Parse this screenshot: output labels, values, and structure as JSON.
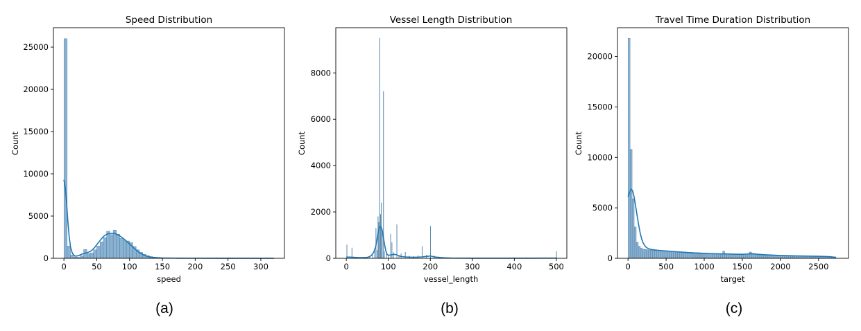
{
  "style": {
    "bar_fill": "#6f9fc7",
    "bar_stroke": "#3b6f96",
    "kde_color": "#1f77b4",
    "axis_color": "#000000"
  },
  "chart_data": [
    {
      "type": "bar",
      "title": "Speed Distribution",
      "xlabel": "speed",
      "ylabel": "Count",
      "panel_label": "(a)",
      "xlim": [
        -16,
        336
      ],
      "ylim": [
        0,
        27300
      ],
      "xticks": [
        0,
        50,
        100,
        150,
        200,
        250,
        300
      ],
      "yticks": [
        0,
        5000,
        10000,
        15000,
        20000,
        25000
      ],
      "bin_width": 5,
      "bins": [
        [
          0,
          26000
        ],
        [
          5,
          1450
        ],
        [
          10,
          400
        ],
        [
          15,
          150
        ],
        [
          20,
          120
        ],
        [
          25,
          300
        ],
        [
          30,
          1050
        ],
        [
          35,
          550
        ],
        [
          40,
          650
        ],
        [
          45,
          1000
        ],
        [
          50,
          1450
        ],
        [
          55,
          1950
        ],
        [
          60,
          2450
        ],
        [
          65,
          3200
        ],
        [
          70,
          2800
        ],
        [
          75,
          3350
        ],
        [
          80,
          2850
        ],
        [
          85,
          2350
        ],
        [
          90,
          2150
        ],
        [
          95,
          2050
        ],
        [
          100,
          1850
        ],
        [
          105,
          1400
        ],
        [
          110,
          1000
        ],
        [
          115,
          700
        ],
        [
          120,
          480
        ],
        [
          125,
          320
        ],
        [
          130,
          200
        ],
        [
          135,
          130
        ],
        [
          140,
          80
        ],
        [
          145,
          50
        ],
        [
          150,
          30
        ],
        [
          155,
          20
        ],
        [
          160,
          15
        ],
        [
          165,
          10
        ],
        [
          170,
          8
        ],
        [
          175,
          5
        ],
        [
          180,
          5
        ],
        [
          190,
          4
        ],
        [
          200,
          3
        ],
        [
          220,
          2
        ],
        [
          250,
          2
        ],
        [
          280,
          1
        ],
        [
          300,
          1
        ],
        [
          315,
          1
        ]
      ],
      "kde": [
        [
          0,
          9300
        ],
        [
          2,
          8400
        ],
        [
          4,
          6600
        ],
        [
          6,
          4400
        ],
        [
          8,
          2600
        ],
        [
          10,
          1350
        ],
        [
          13,
          550
        ],
        [
          17,
          250
        ],
        [
          22,
          300
        ],
        [
          27,
          480
        ],
        [
          32,
          600
        ],
        [
          37,
          700
        ],
        [
          42,
          900
        ],
        [
          47,
          1300
        ],
        [
          52,
          1800
        ],
        [
          57,
          2300
        ],
        [
          62,
          2700
        ],
        [
          67,
          2900
        ],
        [
          72,
          2950
        ],
        [
          77,
          2950
        ],
        [
          82,
          2800
        ],
        [
          87,
          2550
        ],
        [
          92,
          2250
        ],
        [
          97,
          1900
        ],
        [
          102,
          1550
        ],
        [
          107,
          1180
        ],
        [
          112,
          850
        ],
        [
          117,
          580
        ],
        [
          122,
          380
        ],
        [
          127,
          240
        ],
        [
          132,
          150
        ],
        [
          140,
          80
        ],
        [
          150,
          40
        ],
        [
          170,
          20
        ],
        [
          200,
          10
        ],
        [
          250,
          5
        ],
        [
          320,
          0
        ]
      ]
    },
    {
      "type": "bar",
      "title": "Vessel Length Distribution",
      "xlabel": "vessel_length",
      "ylabel": "Count",
      "panel_label": "(b)",
      "xlim": [
        -25,
        525
      ],
      "ylim": [
        0,
        9950
      ],
      "xticks": [
        0,
        100,
        200,
        300,
        400,
        500
      ],
      "yticks": [
        0,
        2000,
        4000,
        6000,
        8000
      ],
      "bin_width": 1,
      "bins": [
        [
          1,
          580
        ],
        [
          13,
          450
        ],
        [
          20,
          50
        ],
        [
          40,
          30
        ],
        [
          55,
          60
        ],
        [
          62,
          150
        ],
        [
          67,
          420
        ],
        [
          70,
          1300
        ],
        [
          73,
          350
        ],
        [
          75,
          1800
        ],
        [
          77,
          1550
        ],
        [
          79,
          9500
        ],
        [
          81,
          1900
        ],
        [
          83,
          2400
        ],
        [
          85,
          1100
        ],
        [
          88,
          7200
        ],
        [
          90,
          300
        ],
        [
          95,
          200
        ],
        [
          100,
          150
        ],
        [
          105,
          1050
        ],
        [
          108,
          680
        ],
        [
          112,
          250
        ],
        [
          120,
          1450
        ],
        [
          125,
          120
        ],
        [
          130,
          200
        ],
        [
          140,
          260
        ],
        [
          150,
          100
        ],
        [
          160,
          80
        ],
        [
          170,
          120
        ],
        [
          180,
          520
        ],
        [
          190,
          140
        ],
        [
          200,
          1380
        ],
        [
          210,
          100
        ],
        [
          220,
          60
        ],
        [
          230,
          50
        ],
        [
          250,
          20
        ],
        [
          300,
          10
        ],
        [
          350,
          5
        ],
        [
          400,
          5
        ],
        [
          450,
          5
        ],
        [
          500,
          290
        ]
      ],
      "kde": [
        [
          0,
          60
        ],
        [
          5,
          50
        ],
        [
          10,
          50
        ],
        [
          20,
          40
        ],
        [
          30,
          30
        ],
        [
          40,
          30
        ],
        [
          50,
          40
        ],
        [
          55,
          70
        ],
        [
          60,
          130
        ],
        [
          65,
          250
        ],
        [
          70,
          500
        ],
        [
          73,
          800
        ],
        [
          76,
          1150
        ],
        [
          79,
          1350
        ],
        [
          82,
          1380
        ],
        [
          85,
          1250
        ],
        [
          88,
          950
        ],
        [
          91,
          600
        ],
        [
          94,
          330
        ],
        [
          97,
          170
        ],
        [
          100,
          130
        ],
        [
          105,
          140
        ],
        [
          110,
          160
        ],
        [
          115,
          170
        ],
        [
          120,
          150
        ],
        [
          125,
          110
        ],
        [
          130,
          80
        ],
        [
          140,
          60
        ],
        [
          150,
          50
        ],
        [
          160,
          45
        ],
        [
          170,
          50
        ],
        [
          180,
          60
        ],
        [
          190,
          80
        ],
        [
          200,
          100
        ],
        [
          205,
          80
        ],
        [
          210,
          60
        ],
        [
          220,
          40
        ],
        [
          230,
          20
        ],
        [
          250,
          10
        ],
        [
          300,
          5
        ],
        [
          400,
          5
        ],
        [
          500,
          10
        ]
      ]
    },
    {
      "type": "bar",
      "title": "Travel Time Duration Distribution",
      "xlabel": "target",
      "ylabel": "Count",
      "panel_label": "(c)",
      "xlim": [
        -138,
        2893
      ],
      "ylim": [
        0,
        22850
      ],
      "xticks": [
        0,
        500,
        1000,
        1500,
        2000,
        2500
      ],
      "yticks": [
        0,
        5000,
        10000,
        15000,
        20000
      ],
      "bin_width": 27,
      "bins": [
        [
          0,
          21800
        ],
        [
          27,
          10800
        ],
        [
          54,
          5900
        ],
        [
          81,
          3100
        ],
        [
          108,
          1600
        ],
        [
          135,
          1200
        ],
        [
          162,
          1000
        ],
        [
          189,
          900
        ],
        [
          216,
          880
        ],
        [
          243,
          850
        ],
        [
          270,
          820
        ],
        [
          297,
          800
        ],
        [
          324,
          790
        ],
        [
          351,
          780
        ],
        [
          378,
          770
        ],
        [
          405,
          760
        ],
        [
          432,
          750
        ],
        [
          459,
          740
        ],
        [
          486,
          730
        ],
        [
          513,
          720
        ],
        [
          540,
          700
        ],
        [
          567,
          690
        ],
        [
          594,
          670
        ],
        [
          621,
          660
        ],
        [
          648,
          650
        ],
        [
          675,
          640
        ],
        [
          702,
          630
        ],
        [
          729,
          620
        ],
        [
          756,
          610
        ],
        [
          783,
          600
        ],
        [
          810,
          590
        ],
        [
          837,
          580
        ],
        [
          864,
          570
        ],
        [
          891,
          560
        ],
        [
          918,
          550
        ],
        [
          945,
          540
        ],
        [
          972,
          530
        ],
        [
          999,
          520
        ],
        [
          1026,
          510
        ],
        [
          1053,
          500
        ],
        [
          1080,
          490
        ],
        [
          1107,
          480
        ],
        [
          1134,
          470
        ],
        [
          1161,
          465
        ],
        [
          1188,
          460
        ],
        [
          1215,
          455
        ],
        [
          1242,
          700
        ],
        [
          1269,
          450
        ],
        [
          1296,
          440
        ],
        [
          1323,
          430
        ],
        [
          1350,
          420
        ],
        [
          1377,
          415
        ],
        [
          1404,
          410
        ],
        [
          1431,
          405
        ],
        [
          1458,
          400
        ],
        [
          1485,
          400
        ],
        [
          1512,
          400
        ],
        [
          1539,
          420
        ],
        [
          1566,
          450
        ],
        [
          1593,
          620
        ],
        [
          1620,
          500
        ],
        [
          1647,
          420
        ],
        [
          1674,
          380
        ],
        [
          1701,
          360
        ],
        [
          1728,
          350
        ],
        [
          1755,
          340
        ],
        [
          1782,
          330
        ],
        [
          1809,
          320
        ],
        [
          1836,
          310
        ],
        [
          1863,
          305
        ],
        [
          1890,
          300
        ],
        [
          1917,
          295
        ],
        [
          1944,
          290
        ],
        [
          1971,
          285
        ],
        [
          1998,
          280
        ],
        [
          2025,
          275
        ],
        [
          2052,
          270
        ],
        [
          2079,
          265
        ],
        [
          2106,
          260
        ],
        [
          2133,
          255
        ],
        [
          2160,
          250
        ],
        [
          2187,
          245
        ],
        [
          2214,
          240
        ],
        [
          2241,
          235
        ],
        [
          2268,
          230
        ],
        [
          2295,
          225
        ],
        [
          2322,
          220
        ],
        [
          2349,
          215
        ],
        [
          2376,
          210
        ],
        [
          2403,
          205
        ],
        [
          2430,
          200
        ],
        [
          2457,
          195
        ],
        [
          2484,
          190
        ],
        [
          2511,
          185
        ],
        [
          2538,
          180
        ],
        [
          2565,
          170
        ],
        [
          2592,
          160
        ],
        [
          2619,
          150
        ],
        [
          2646,
          140
        ],
        [
          2673,
          120
        ],
        [
          2700,
          90
        ]
      ],
      "kde": [
        [
          0,
          6100
        ],
        [
          20,
          6500
        ],
        [
          40,
          6850
        ],
        [
          60,
          6700
        ],
        [
          80,
          6100
        ],
        [
          100,
          5200
        ],
        [
          120,
          4200
        ],
        [
          140,
          3300
        ],
        [
          160,
          2500
        ],
        [
          180,
          1900
        ],
        [
          200,
          1500
        ],
        [
          230,
          1150
        ],
        [
          260,
          980
        ],
        [
          300,
          880
        ],
        [
          350,
          830
        ],
        [
          400,
          790
        ],
        [
          500,
          730
        ],
        [
          600,
          670
        ],
        [
          700,
          610
        ],
        [
          800,
          560
        ],
        [
          900,
          520
        ],
        [
          1000,
          490
        ],
        [
          1100,
          460
        ],
        [
          1200,
          440
        ],
        [
          1300,
          430
        ],
        [
          1400,
          410
        ],
        [
          1500,
          400
        ],
        [
          1550,
          420
        ],
        [
          1600,
          450
        ],
        [
          1650,
          440
        ],
        [
          1700,
          400
        ],
        [
          1800,
          350
        ],
        [
          1900,
          310
        ],
        [
          2000,
          280
        ],
        [
          2100,
          260
        ],
        [
          2200,
          240
        ],
        [
          2300,
          230
        ],
        [
          2400,
          215
        ],
        [
          2500,
          200
        ],
        [
          2600,
          180
        ],
        [
          2650,
          160
        ],
        [
          2700,
          120
        ],
        [
          2730,
          100
        ]
      ]
    }
  ]
}
